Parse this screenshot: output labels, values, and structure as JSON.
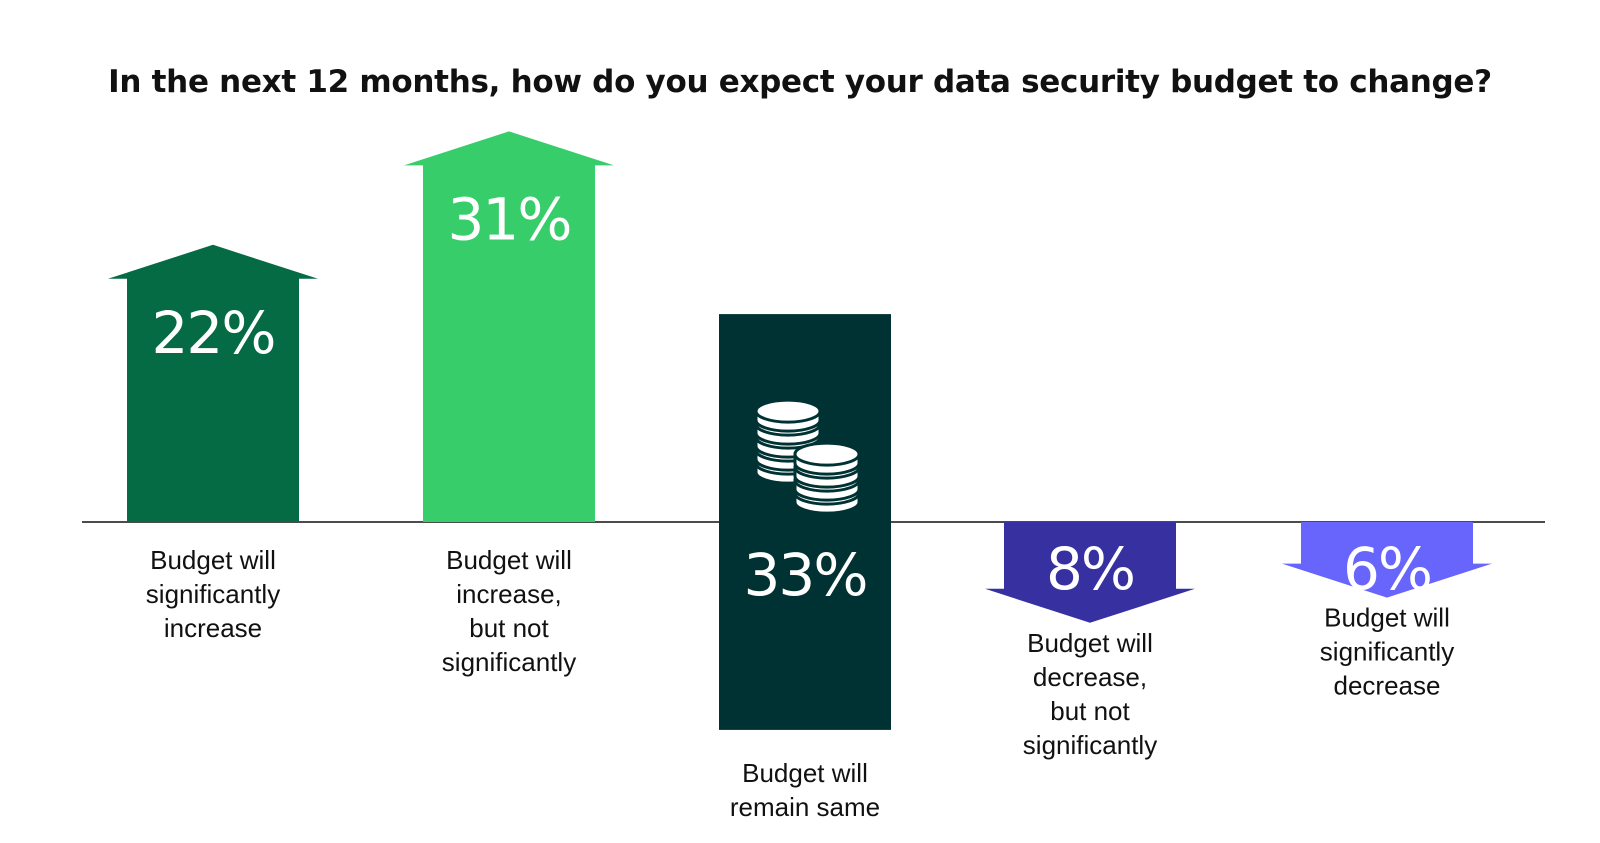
{
  "chart_data": {
    "type": "bar",
    "title": "In the next 12 months, how do you expect your data security budget to change?",
    "unit": "%",
    "categories": [
      "Budget will significantly increase",
      "Budget will increase, but not significantly",
      "Budget will remain same",
      "Budget will decrease, but not significantly",
      "Budget will significantly decrease"
    ],
    "category_lines": [
      [
        "Budget will",
        "significantly",
        "increase"
      ],
      [
        "Budget will",
        "increase,",
        "but not",
        "significantly"
      ],
      [
        "Budget will",
        "remain same"
      ],
      [
        "Budget will",
        "decrease,",
        "but not",
        "significantly"
      ],
      [
        "Budget will",
        "significantly",
        "decrease"
      ]
    ],
    "values": [
      22,
      31,
      33,
      8,
      6
    ],
    "value_labels": [
      "22%",
      "31%",
      "33%",
      "8%",
      "6%"
    ],
    "direction": [
      "up",
      "up",
      "center",
      "down",
      "down"
    ],
    "colors": [
      "#046b45",
      "#37cd6a",
      "#003233",
      "#3730a0",
      "#6765fc"
    ],
    "icon": "coin-stacks-icon",
    "legend": "none",
    "grid": false
  }
}
